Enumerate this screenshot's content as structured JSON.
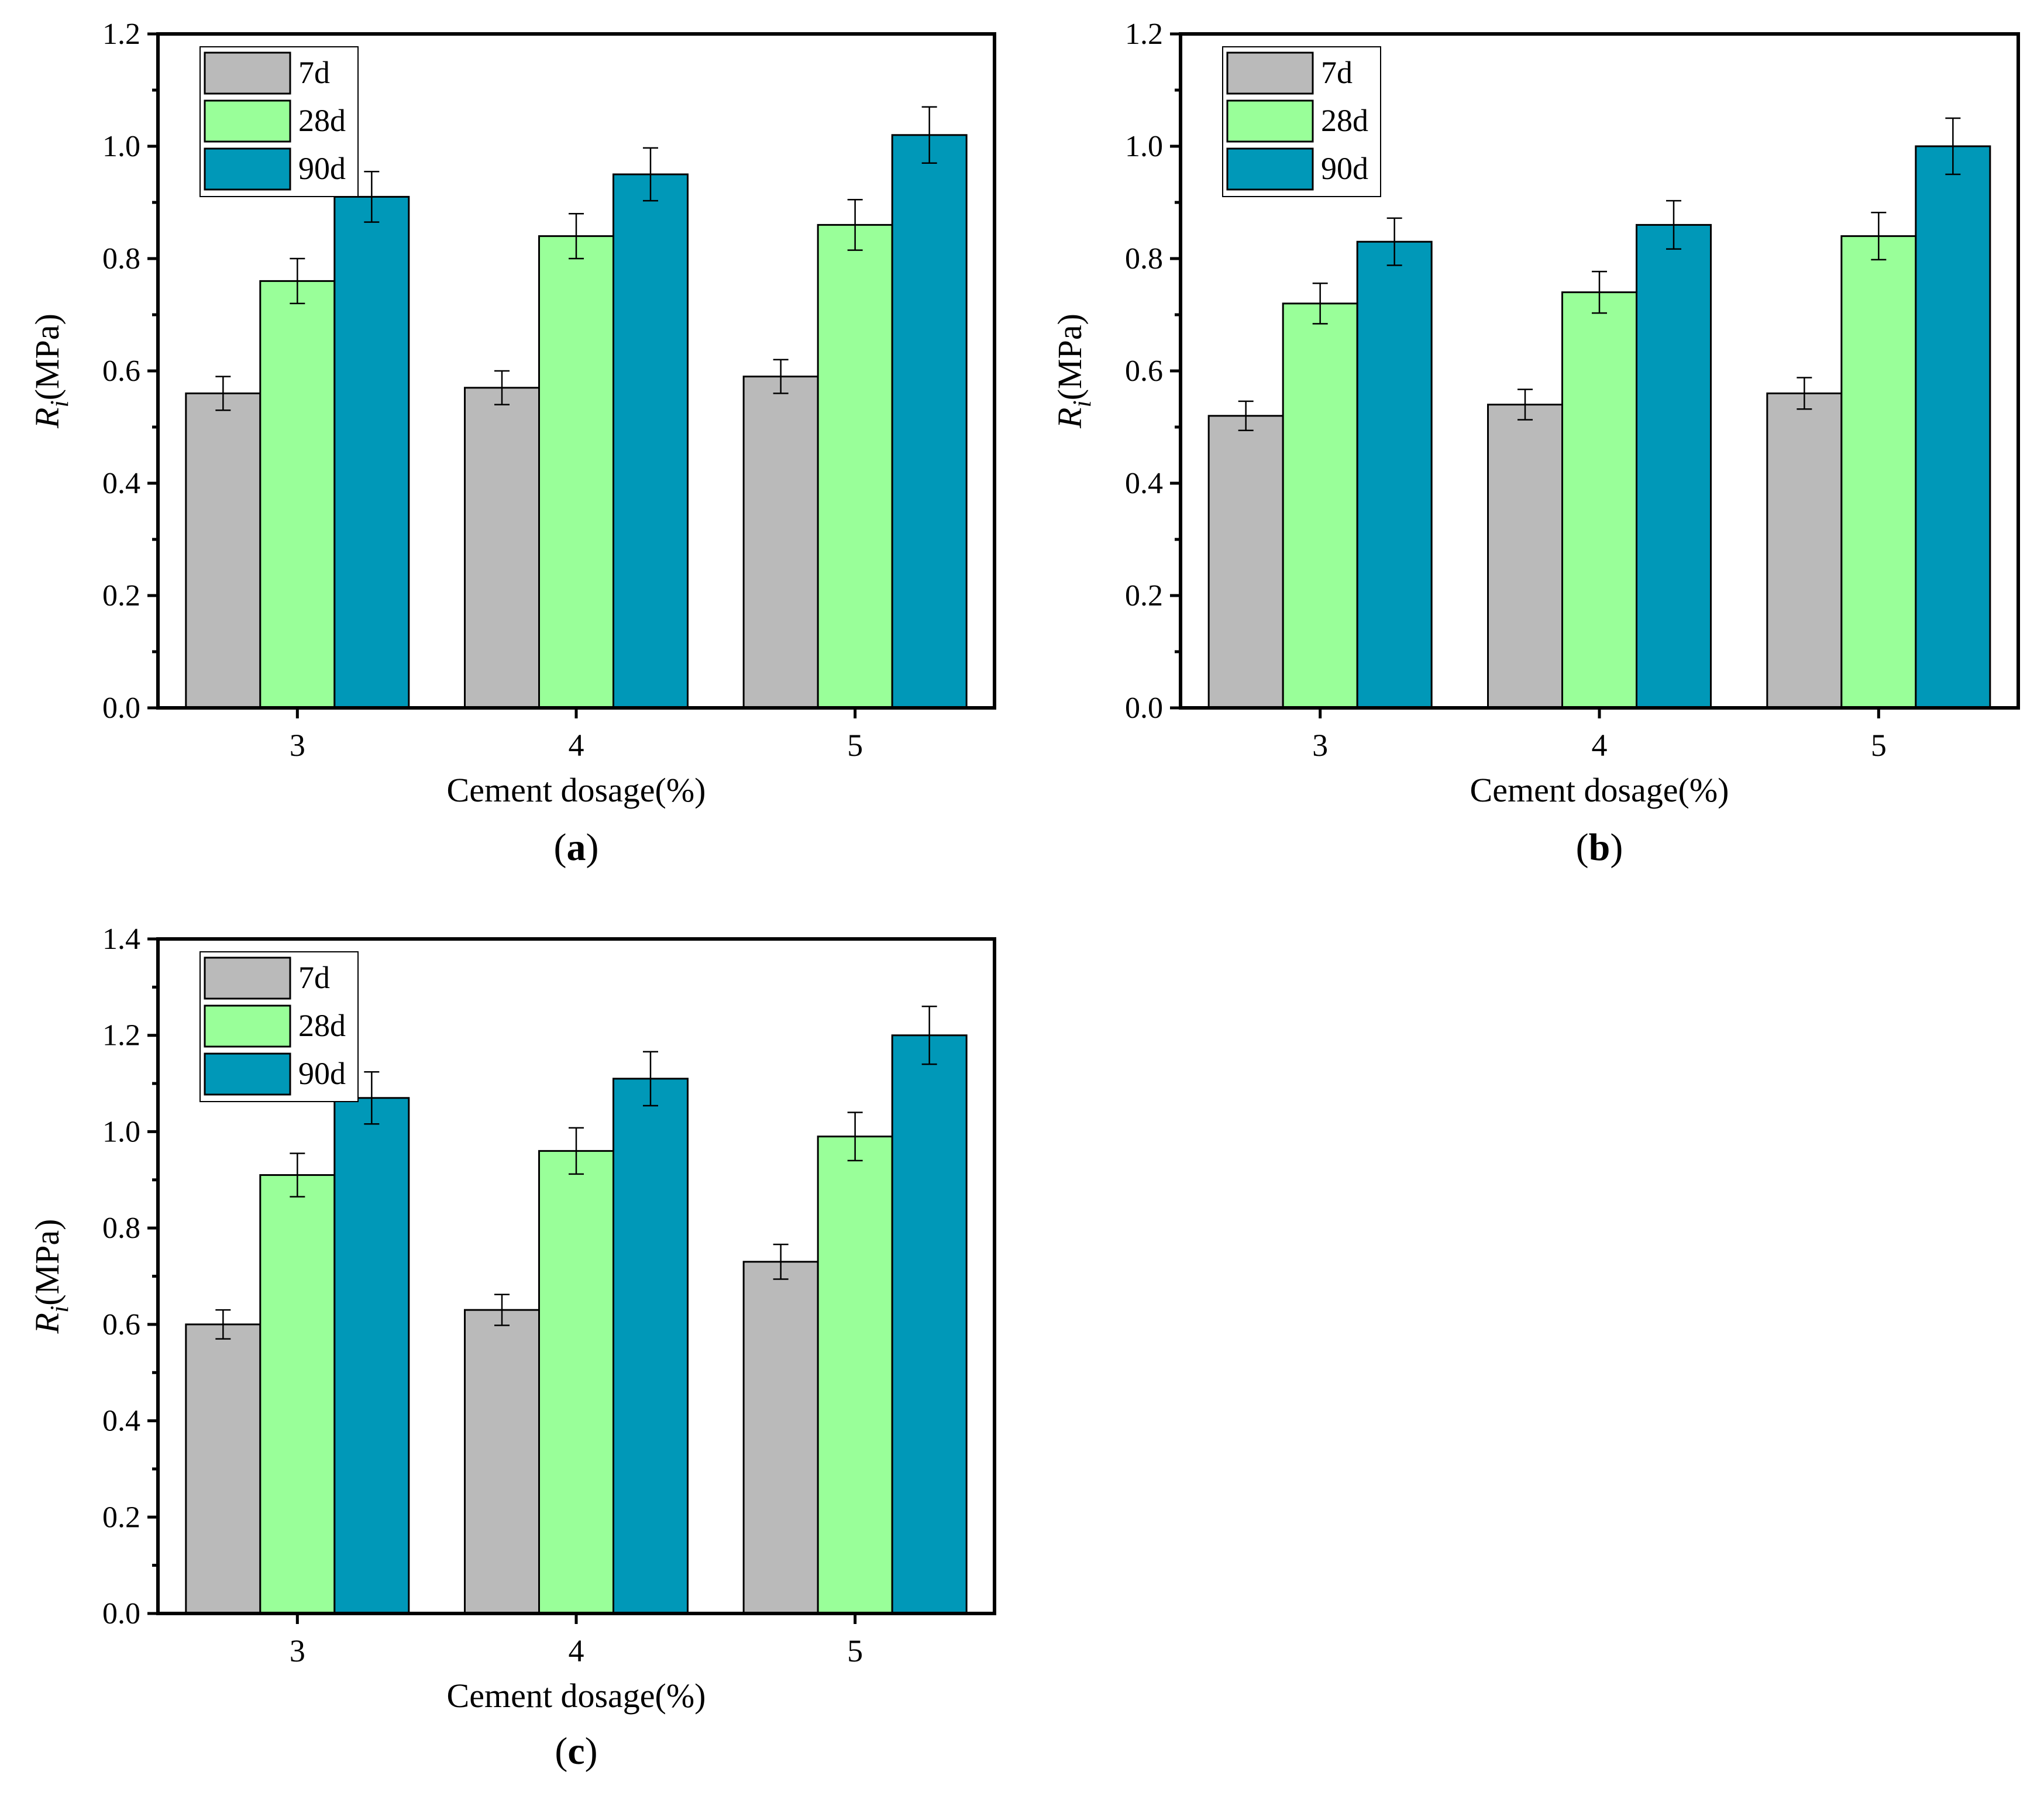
{
  "figure": {
    "panels": [
      {
        "panel_label_letter": "a"
      },
      {
        "panel_label_letter": "b"
      },
      {
        "panel_label_letter": "c"
      }
    ]
  },
  "chart_data": [
    {
      "type": "bar",
      "categories": [
        "3",
        "4",
        "5"
      ],
      "xlabel": "Cement dosage(%)",
      "ylabel": "R_i(MPa)",
      "ylabel_main": "R",
      "ylabel_sub": "i",
      "ylabel_unit": "(MPa)",
      "ylim": [
        0,
        1.2
      ],
      "yticks": [
        0.0,
        0.2,
        0.4,
        0.6,
        0.8,
        1.0,
        1.2
      ],
      "legend_position": "top-left",
      "series": [
        {
          "name": "7d",
          "color": "#bababa",
          "values": [
            0.56,
            0.57,
            0.59
          ],
          "errors": [
            0.03,
            0.03,
            0.03
          ]
        },
        {
          "name": "28d",
          "color": "#99ff99",
          "values": [
            0.76,
            0.84,
            0.86
          ],
          "errors": [
            0.04,
            0.04,
            0.045
          ]
        },
        {
          "name": "90d",
          "color": "#0098b8",
          "values": [
            0.91,
            0.95,
            1.02
          ],
          "errors": [
            0.045,
            0.047,
            0.05
          ]
        }
      ]
    },
    {
      "type": "bar",
      "categories": [
        "3",
        "4",
        "5"
      ],
      "xlabel": "Cement dosage(%)",
      "ylabel": "R_i(MPa)",
      "ylabel_main": "R",
      "ylabel_sub": "i",
      "ylabel_unit": "(MPa)",
      "ylim": [
        0,
        1.2
      ],
      "yticks": [
        0.0,
        0.2,
        0.4,
        0.6,
        0.8,
        1.0,
        1.2
      ],
      "legend_position": "top-left",
      "series": [
        {
          "name": "7d",
          "color": "#bababa",
          "values": [
            0.52,
            0.54,
            0.56
          ],
          "errors": [
            0.026,
            0.027,
            0.028
          ]
        },
        {
          "name": "28d",
          "color": "#99ff99",
          "values": [
            0.72,
            0.74,
            0.84
          ],
          "errors": [
            0.036,
            0.037,
            0.042
          ]
        },
        {
          "name": "90d",
          "color": "#0098b8",
          "values": [
            0.83,
            0.86,
            1.0
          ],
          "errors": [
            0.042,
            0.043,
            0.05
          ]
        }
      ]
    },
    {
      "type": "bar",
      "categories": [
        "3",
        "4",
        "5"
      ],
      "xlabel": "Cement dosage(%)",
      "ylabel": "R_i(MPa)",
      "ylabel_main": "R",
      "ylabel_sub": "i",
      "ylabel_unit": "(MPa)",
      "ylim": [
        0,
        1.4
      ],
      "yticks": [
        0.0,
        0.2,
        0.4,
        0.6,
        0.8,
        1.0,
        1.2,
        1.4
      ],
      "legend_position": "top-left",
      "series": [
        {
          "name": "7d",
          "color": "#bababa",
          "values": [
            0.6,
            0.63,
            0.73
          ],
          "errors": [
            0.03,
            0.032,
            0.036
          ]
        },
        {
          "name": "28d",
          "color": "#99ff99",
          "values": [
            0.91,
            0.96,
            0.99
          ],
          "errors": [
            0.045,
            0.048,
            0.05
          ]
        },
        {
          "name": "90d",
          "color": "#0098b8",
          "values": [
            1.07,
            1.11,
            1.2
          ],
          "errors": [
            0.054,
            0.056,
            0.06
          ]
        }
      ]
    }
  ]
}
